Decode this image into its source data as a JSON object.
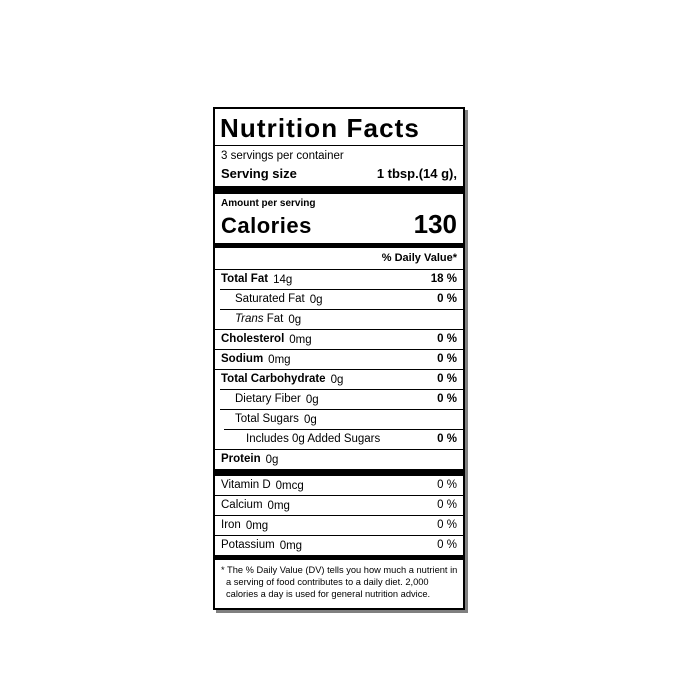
{
  "label": {
    "title": "Nutrition Facts",
    "servings_per_container": "3 servings per container",
    "serving_size_label": "Serving size",
    "serving_size_value": "1 tbsp.(14 g),",
    "amount_per_serving": "Amount per serving",
    "calories_label": "Calories",
    "calories_value": "130",
    "daily_value_header": "% Daily Value*",
    "rows": [
      {
        "name": "Total Fat",
        "amount": "14g",
        "dv": "18 %",
        "bold": true,
        "indent": 0
      },
      {
        "name": "Saturated Fat",
        "amount": "0g",
        "dv": "0 %",
        "bold": false,
        "indent": 1
      },
      {
        "name": "Fat",
        "italic_prefix": "Trans",
        "amount": "0g",
        "dv": "",
        "bold": false,
        "indent": 1
      },
      {
        "name": "Cholesterol",
        "amount": "0mg",
        "dv": "0 %",
        "bold": true,
        "indent": 0
      },
      {
        "name": "Sodium",
        "amount": "0mg",
        "dv": "0 %",
        "bold": true,
        "indent": 0
      },
      {
        "name": "Total Carbohydrate",
        "amount": "0g",
        "dv": "0 %",
        "bold": true,
        "indent": 0
      },
      {
        "name": "Dietary Fiber",
        "amount": "0g",
        "dv": "0 %",
        "bold": false,
        "indent": 1
      },
      {
        "name": "Total Sugars",
        "amount": "0g",
        "dv": "",
        "bold": false,
        "indent": 1
      },
      {
        "name": "Includes 0g Added Sugars",
        "amount": "",
        "dv": "0 %",
        "bold": false,
        "indent": 2
      },
      {
        "name": "Protein",
        "amount": "0g",
        "dv": "",
        "bold": true,
        "indent": 0
      }
    ],
    "vitamins": [
      {
        "name": "Vitamin D",
        "amount": "0mcg",
        "dv": "0 %"
      },
      {
        "name": "Calcium",
        "amount": "0mg",
        "dv": "0 %"
      },
      {
        "name": "Iron",
        "amount": "0mg",
        "dv": "0 %"
      },
      {
        "name": "Potassium",
        "amount": "0mg",
        "dv": "0 %"
      }
    ],
    "footnote": "* The % Daily Value (DV) tells you how much a nutrient in a serving of food contributes to a daily diet. 2,000 calories a day is used for general nutrition advice.",
    "colors": {
      "text": "#000000",
      "background": "#ffffff",
      "shadow": "#808080"
    }
  }
}
